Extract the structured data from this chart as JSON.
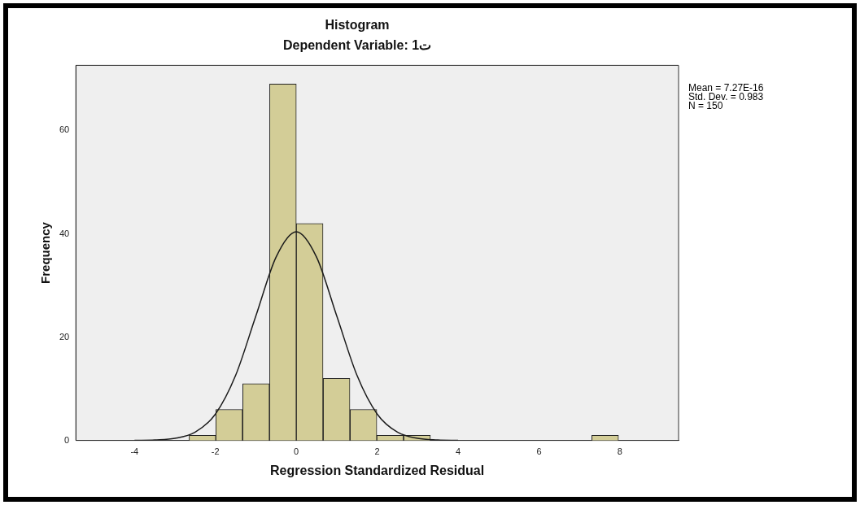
{
  "chart_data": {
    "type": "histogram",
    "title": "Histogram",
    "subtitle": "Dependent Variable: 1ت",
    "xlabel": "Regression Standardized Residual",
    "ylabel": "Frequency",
    "bins": [
      -2.65,
      -1.99,
      -1.33,
      -0.66,
      0,
      0.66,
      1.33,
      1.99,
      2.65,
      3.32,
      3.98,
      4.64,
      5.31,
      5.97,
      6.64,
      7.3,
      7.97
    ],
    "values": [
      1,
      6,
      11,
      69,
      42,
      12,
      6,
      1,
      1,
      0,
      0,
      0,
      0,
      0,
      0,
      1
    ],
    "color": "#d3cd97",
    "series": [
      {
        "type": "line",
        "color": "#1a1a1a",
        "x": [
          -4,
          -3.5,
          -3,
          -2.5,
          -2,
          -1.5,
          -1,
          -0.5,
          0,
          0.5,
          1,
          1.5,
          2,
          2.5,
          3,
          3.5,
          4
        ],
        "values": [
          0,
          0.1,
          0.4,
          1.6,
          5.1,
          12.6,
          24.1,
          35.5,
          40.4,
          35.5,
          24.1,
          12.6,
          5.1,
          1.6,
          0.4,
          0.1,
          0
        ]
      }
    ],
    "xlim": [
      -5.45,
      9.45
    ],
    "xticks": [
      -4,
      -2,
      0,
      2,
      4,
      6,
      8
    ],
    "ylim": [
      0,
      72.6
    ],
    "yticks": [
      0,
      20,
      40,
      60
    ],
    "annotations": [
      "Mean = 7.27E-16",
      "Std. Dev. = 0.983",
      "N = 150"
    ],
    "grid": false,
    "legend": false,
    "marker": "none"
  }
}
